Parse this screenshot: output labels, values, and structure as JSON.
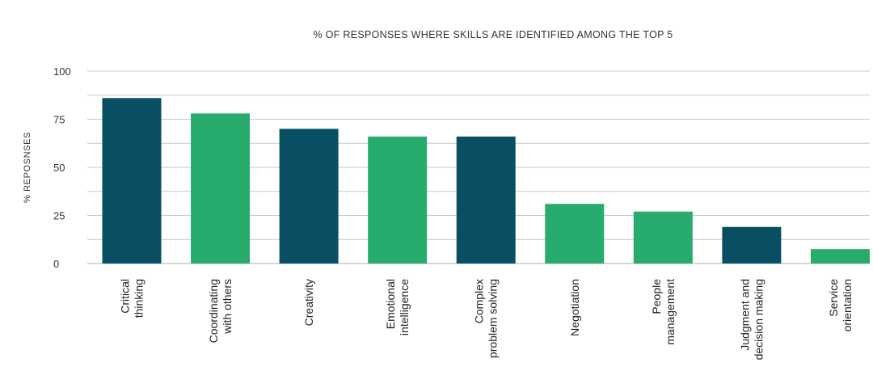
{
  "chart_data": {
    "type": "bar",
    "title": "% OF RESPONSES WHERE SKILLS ARE IDENTIFIED AMONG THE TOP 5",
    "xlabel": "",
    "ylabel": "% REPOSNSES",
    "ylim": [
      0,
      100
    ],
    "yticks": [
      0,
      25,
      50,
      75,
      100
    ],
    "grid": true,
    "categories": [
      [
        "Critical",
        "thinking"
      ],
      [
        "Coordinating",
        "with others"
      ],
      [
        "Creativity"
      ],
      [
        "Emotional",
        "intelligence"
      ],
      [
        "Complex",
        "problem solving"
      ],
      [
        "Negotiation"
      ],
      [
        "People",
        "management"
      ],
      [
        "Judgment and",
        "decision making"
      ],
      [
        "Service",
        "orientation"
      ]
    ],
    "values": [
      86,
      78,
      70,
      66,
      66,
      31,
      27,
      19,
      7.5
    ],
    "bar_colors": [
      "#084f64",
      "#28ac6e",
      "#084f64",
      "#28ac6e",
      "#084f64",
      "#28ac6e",
      "#28ac6e",
      "#084f64",
      "#28ac6e"
    ]
  }
}
